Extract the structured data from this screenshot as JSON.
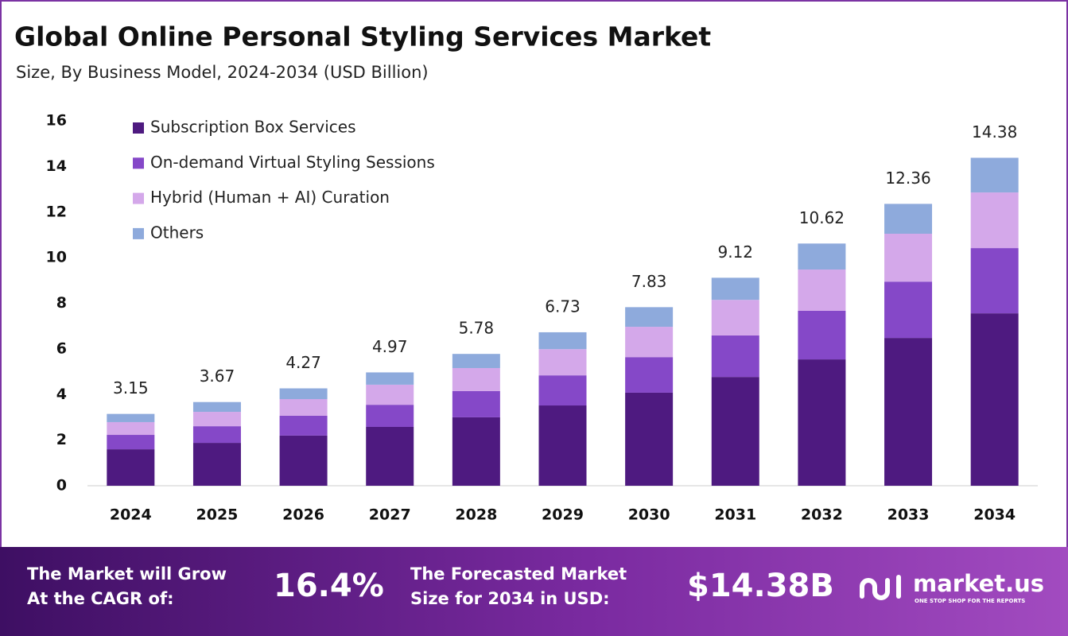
{
  "chart_data": {
    "type": "stacked-bar",
    "title": "Global Online Personal Styling Services Market",
    "subtitle": "Size, By Business Model, 2024-2034 (USD Billion)",
    "categories": [
      "2024",
      "2025",
      "2026",
      "2027",
      "2028",
      "2029",
      "2030",
      "2031",
      "2032",
      "2033",
      "2034"
    ],
    "series": [
      {
        "name": "Subscription Box Services",
        "color": "#4e1a80",
        "values": [
          1.6,
          1.88,
          2.2,
          2.58,
          3.0,
          3.52,
          4.08,
          4.77,
          5.54,
          6.48,
          7.56
        ]
      },
      {
        "name": "On-demand Virtual Styling Sessions",
        "color": "#8548c8",
        "values": [
          0.63,
          0.73,
          0.87,
          0.97,
          1.15,
          1.32,
          1.56,
          1.82,
          2.13,
          2.47,
          2.86
        ]
      },
      {
        "name": "Hybrid (Human + AI) Curation",
        "color": "#d4a8ea",
        "values": [
          0.56,
          0.63,
          0.73,
          0.88,
          1.01,
          1.15,
          1.33,
          1.56,
          1.81,
          2.1,
          2.44
        ]
      },
      {
        "name": "Others",
        "color": "#8eaadc",
        "values": [
          0.36,
          0.43,
          0.47,
          0.54,
          0.62,
          0.74,
          0.86,
          0.97,
          1.14,
          1.31,
          1.52
        ]
      }
    ],
    "totals": [
      3.15,
      3.67,
      4.27,
      4.97,
      5.78,
      6.73,
      7.83,
      9.12,
      10.62,
      12.36,
      14.38
    ],
    "ylim": [
      0,
      16
    ],
    "yticks": [
      0,
      2,
      4,
      6,
      8,
      10,
      12,
      14,
      16
    ]
  },
  "footer": {
    "cagr_label": [
      "The Market will Grow",
      "At the CAGR of:"
    ],
    "cagr_value": "16.4%",
    "forecast_label": [
      "The Forecasted Market",
      "Size for 2034 in USD:"
    ],
    "forecast_value": "$14.38B",
    "brand": "market.us",
    "tagline": "ONE STOP SHOP FOR THE REPORTS"
  }
}
